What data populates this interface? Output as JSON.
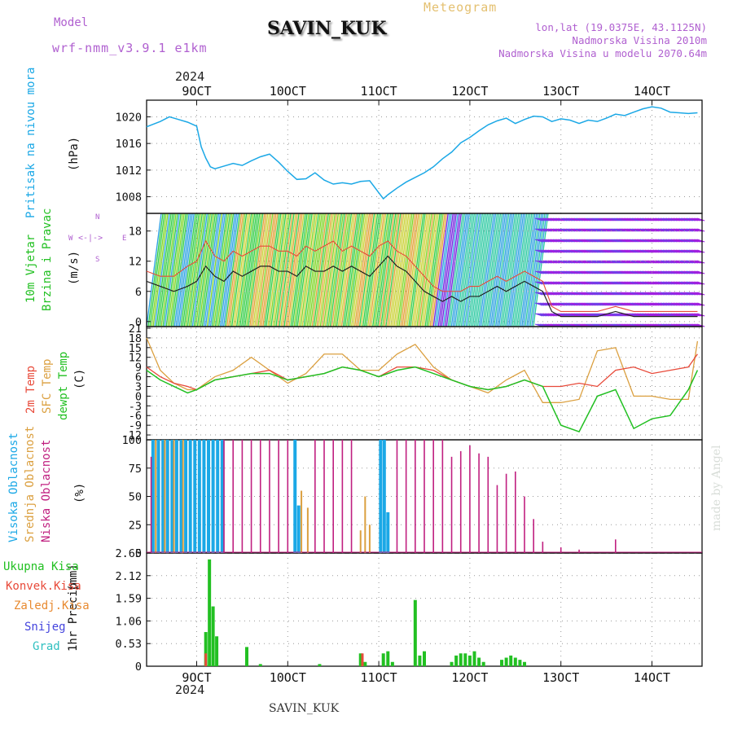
{
  "header": {
    "model_label": "Model",
    "model_name": "wrf-nmm_v3.9.1 e1km",
    "station": "SAVIN_KUK",
    "meteogram": "Meteogram",
    "lonlat": "lon,lat (19.0375E, 43.1125N)",
    "altitude": "Nadmorska Visina 2010m",
    "altitude_model": "Nadmorska Visina u modelu 2070.64m",
    "footer_station": "SAVIN_KUK",
    "credit": "made by Angel"
  },
  "colors": {
    "pressure": "#1ba8e6",
    "wind_label": "#22c022",
    "temp": "#e84a3a",
    "sfc_temp": "#dba040",
    "dewpt": "#22c022",
    "high_cloud": "#1ba8e6",
    "mid_cloud": "#dba040",
    "low_cloud": "#c02080",
    "total_precip": "#22c022",
    "conv_precip": "#e84a3a",
    "frozen_precip": "#e88a30",
    "snow": "#4444dd",
    "hail": "#30c0c0",
    "purple_text": "#b060d0"
  },
  "chart_data": [
    {
      "type": "line",
      "panel": "pressure",
      "ylabel_title": "Pritisak na nivou mora",
      "ylabel_unit": "(hPa)",
      "x_axis": {
        "year": "2024",
        "ticks": [
          "9OCT",
          "10OCT",
          "11OCT",
          "12OCT",
          "13OCT",
          "14OCT"
        ],
        "range": [
          8.45,
          14.55
        ]
      },
      "ylim": [
        1005.5,
        1022.5
      ],
      "yticks": [
        1008,
        1012,
        1016,
        1020
      ],
      "grid": true,
      "series": [
        {
          "x": [
            8.45,
            8.6,
            8.7,
            8.8,
            8.9,
            9.0,
            9.05,
            9.1,
            9.15,
            9.2,
            9.3,
            9.4,
            9.5,
            9.6,
            9.7,
            9.8,
            9.9,
            10.0,
            10.1,
            10.2,
            10.3,
            10.4,
            10.5,
            10.6,
            10.7,
            10.8,
            10.9,
            11.0,
            11.05,
            11.1,
            11.2,
            11.3,
            11.4,
            11.5,
            11.6,
            11.7,
            11.8,
            11.9,
            12.0,
            12.1,
            12.2,
            12.3,
            12.4,
            12.5,
            12.6,
            12.7,
            12.8,
            12.9,
            13.0,
            13.1,
            13.2,
            13.3,
            13.4,
            13.5,
            13.6,
            13.7,
            13.8,
            13.9,
            14.0,
            14.1,
            14.2,
            14.3,
            14.4,
            14.5
          ],
          "values": [
            1018.5,
            1019.3,
            1020.0,
            1019.6,
            1019.2,
            1018.6,
            1015.5,
            1013.8,
            1012.5,
            1012.2,
            1012.6,
            1013.0,
            1012.7,
            1013.4,
            1014.0,
            1014.4,
            1013.2,
            1011.8,
            1010.6,
            1010.7,
            1011.6,
            1010.5,
            1009.9,
            1010.1,
            1009.9,
            1010.3,
            1010.4,
            1008.6,
            1007.7,
            1008.3,
            1009.3,
            1010.2,
            1010.9,
            1011.6,
            1012.5,
            1013.7,
            1014.7,
            1016.1,
            1016.9,
            1017.9,
            1018.8,
            1019.4,
            1019.8,
            1019.0,
            1019.6,
            1020.1,
            1020.0,
            1019.3,
            1019.7,
            1019.5,
            1019.0,
            1019.5,
            1019.3,
            1019.8,
            1020.4,
            1020.2,
            1020.7,
            1021.2,
            1021.5,
            1021.3,
            1020.7,
            1020.6,
            1020.5,
            1020.6
          ]
        }
      ]
    },
    {
      "type": "line",
      "panel": "wind",
      "ylabel_title": "10m Vjetar",
      "ylabel_title2": "Brzina i Pravac",
      "ylabel_unit": "(m/s)",
      "compass_labels": [
        "N",
        "W",
        "E",
        "S"
      ],
      "ylim": [
        -1,
        21.5
      ],
      "yticks": [
        0,
        6,
        12,
        18
      ],
      "grid": true,
      "series": [
        {
          "name": "wind speed",
          "x": [
            8.45,
            8.6,
            8.75,
            8.9,
            9.0,
            9.1,
            9.2,
            9.3,
            9.4,
            9.5,
            9.6,
            9.7,
            9.8,
            9.9,
            10.0,
            10.1,
            10.2,
            10.3,
            10.4,
            10.5,
            10.6,
            10.7,
            10.8,
            10.9,
            11.0,
            11.1,
            11.2,
            11.3,
            11.4,
            11.5,
            11.6,
            11.7,
            11.8,
            11.9,
            12.0,
            12.1,
            12.2,
            12.3,
            12.4,
            12.5,
            12.6,
            12.7,
            12.8,
            12.9,
            13.0,
            13.2,
            13.4,
            13.6,
            13.8,
            14.0,
            14.2,
            14.4,
            14.5
          ],
          "values": [
            8,
            7,
            6,
            7,
            8,
            11,
            9,
            8,
            10,
            9,
            10,
            11,
            11,
            10,
            10,
            9,
            11,
            10,
            10,
            11,
            10,
            11,
            10,
            9,
            11,
            13,
            11,
            10,
            8,
            6,
            5,
            4,
            5,
            4,
            5,
            5,
            6,
            7,
            6,
            7,
            8,
            7,
            6,
            2,
            1,
            1,
            1,
            2,
            1,
            1,
            1,
            1,
            1
          ]
        },
        {
          "name": "wind gust",
          "x": [
            8.45,
            8.6,
            8.75,
            8.9,
            9.0,
            9.1,
            9.2,
            9.3,
            9.4,
            9.5,
            9.6,
            9.7,
            9.8,
            9.9,
            10.0,
            10.1,
            10.2,
            10.3,
            10.4,
            10.5,
            10.6,
            10.7,
            10.8,
            10.9,
            11.0,
            11.1,
            11.2,
            11.3,
            11.4,
            11.5,
            11.6,
            11.7,
            11.8,
            11.9,
            12.0,
            12.1,
            12.2,
            12.3,
            12.4,
            12.5,
            12.6,
            12.7,
            12.8,
            12.9,
            13.0,
            13.2,
            13.4,
            13.6,
            13.8,
            14.0,
            14.2,
            14.4,
            14.5
          ],
          "values": [
            10,
            9,
            9,
            11,
            12,
            16,
            13,
            12,
            14,
            13,
            14,
            15,
            15,
            14,
            14,
            13,
            15,
            14,
            15,
            16,
            14,
            15,
            14,
            13,
            15,
            16,
            14,
            13,
            11,
            9,
            7,
            6,
            6,
            6,
            7,
            7,
            8,
            9,
            8,
            9,
            10,
            9,
            8,
            3,
            2,
            2,
            2,
            3,
            2,
            2,
            2,
            2,
            2
          ]
        }
      ]
    },
    {
      "type": "line",
      "panel": "temperature",
      "ylabel_title": "2m Temp",
      "ylabel_title2": "SFC Temp",
      "ylabel_title3": "dewpt Temp",
      "ylabel_unit": "(C)",
      "ylim": [
        -13.5,
        21.5
      ],
      "yticks": [
        -12,
        -9,
        -6,
        -3,
        0,
        3,
        6,
        9,
        12,
        15,
        18,
        21
      ],
      "grid": true,
      "series": [
        {
          "name": "2m Temp",
          "x": [
            8.45,
            8.6,
            8.75,
            8.9,
            9.0,
            9.2,
            9.4,
            9.6,
            9.8,
            10.0,
            10.2,
            10.4,
            10.6,
            10.8,
            11.0,
            11.2,
            11.4,
            11.6,
            11.8,
            12.0,
            12.2,
            12.4,
            12.6,
            12.8,
            13.0,
            13.2,
            13.4,
            13.6,
            13.8,
            14.0,
            14.2,
            14.4,
            14.5
          ],
          "values": [
            9,
            6,
            4,
            3,
            2,
            5,
            6,
            7,
            8,
            5,
            6,
            7,
            9,
            8,
            6,
            9,
            9,
            8,
            5,
            3,
            2,
            3,
            5,
            3,
            3,
            4,
            3,
            8,
            9,
            7,
            8,
            9,
            13
          ]
        },
        {
          "name": "SFC Temp",
          "x": [
            8.45,
            8.6,
            8.75,
            8.9,
            9.0,
            9.2,
            9.4,
            9.6,
            9.8,
            10.0,
            10.2,
            10.4,
            10.6,
            10.8,
            11.0,
            11.2,
            11.4,
            11.6,
            11.8,
            12.0,
            12.2,
            12.4,
            12.6,
            12.8,
            13.0,
            13.2,
            13.4,
            13.6,
            13.8,
            14.0,
            14.2,
            14.4,
            14.5
          ],
          "values": [
            18,
            8,
            4,
            2,
            2,
            6,
            8,
            12,
            8,
            4,
            7,
            13,
            13,
            8,
            8,
            13,
            16,
            9,
            5,
            3,
            1,
            5,
            8,
            -2,
            -2,
            -1,
            14,
            15,
            0,
            0,
            -1,
            -1,
            17
          ]
        },
        {
          "name": "dewpt Temp",
          "x": [
            8.45,
            8.6,
            8.75,
            8.9,
            9.0,
            9.2,
            9.4,
            9.6,
            9.8,
            10.0,
            10.2,
            10.4,
            10.6,
            10.8,
            11.0,
            11.2,
            11.4,
            11.6,
            11.8,
            12.0,
            12.2,
            12.4,
            12.6,
            12.8,
            13.0,
            13.2,
            13.4,
            13.6,
            13.8,
            14.0,
            14.2,
            14.4,
            14.5
          ],
          "values": [
            8,
            5,
            3,
            1,
            2,
            5,
            6,
            7,
            7,
            5,
            6,
            7,
            9,
            8,
            6,
            8,
            9,
            7,
            5,
            3,
            2,
            3,
            5,
            3,
            -9,
            -11,
            0,
            2,
            -10,
            -7,
            -6,
            2,
            8
          ]
        }
      ]
    },
    {
      "type": "bar",
      "panel": "cloud",
      "ylabel_title": "Visoka Oblacnost",
      "ylabel_title2": "Srednja Oblacnost",
      "ylabel_title3": "Niska Oblacnost",
      "ylabel_unit": "(%)",
      "ylim": [
        0,
        100
      ],
      "yticks": [
        0,
        25,
        50,
        75,
        100
      ],
      "grid": true,
      "series": [
        {
          "name": "Visoka Oblacnost",
          "x": [
            8.52,
            8.58,
            8.63,
            8.68,
            8.73,
            8.78,
            8.83,
            8.88,
            8.93,
            8.98,
            9.03,
            9.08,
            9.13,
            9.18,
            9.23,
            9.28,
            10.08,
            10.12,
            11.02,
            11.06,
            11.1
          ],
          "values": [
            100,
            100,
            100,
            100,
            100,
            100,
            100,
            100,
            100,
            100,
            100,
            100,
            100,
            100,
            100,
            100,
            100,
            42,
            100,
            100,
            36
          ]
        },
        {
          "name": "Srednja Oblacnost",
          "x": [
            8.55,
            8.65,
            8.75,
            8.85,
            10.15,
            10.22,
            10.8,
            10.85,
            10.9
          ],
          "values": [
            100,
            100,
            100,
            100,
            55,
            40,
            20,
            50,
            25
          ]
        },
        {
          "name": "Niska Oblacnost",
          "x": [
            8.5,
            9.3,
            9.4,
            9.5,
            9.6,
            9.7,
            9.8,
            9.9,
            10.0,
            10.3,
            10.4,
            10.5,
            10.6,
            10.7,
            11.2,
            11.3,
            11.4,
            11.5,
            11.6,
            11.7,
            11.8,
            11.9,
            12.0,
            12.1,
            12.2,
            12.3,
            12.4,
            12.5,
            12.6,
            12.7,
            12.8,
            13.0,
            13.2,
            13.6
          ],
          "values": [
            85,
            100,
            100,
            100,
            100,
            100,
            100,
            100,
            100,
            100,
            100,
            100,
            100,
            100,
            100,
            100,
            100,
            100,
            100,
            100,
            85,
            90,
            95,
            88,
            85,
            60,
            70,
            72,
            50,
            30,
            10,
            5,
            3,
            12
          ]
        }
      ]
    },
    {
      "type": "bar",
      "panel": "precip",
      "ylabel_title": "1hr Precip",
      "ylabel_unit": "(mm)",
      "legend": [
        "Ukupna Kisa",
        "Konvek.Kisa",
        "Zaledj.Kisa",
        "Snijeg",
        "Grad"
      ],
      "ylim": [
        0,
        2.65
      ],
      "yticks": [
        0,
        0.53,
        1.06,
        1.59,
        2.12,
        2.65
      ],
      "grid": true,
      "series": [
        {
          "name": "Ukupna Kisa",
          "x": [
            9.1,
            9.14,
            9.18,
            9.22,
            9.55,
            9.7,
            10.35,
            10.8,
            10.85,
            11.05,
            11.1,
            11.15,
            11.4,
            11.45,
            11.5,
            11.8,
            11.85,
            11.9,
            11.95,
            12.0,
            12.05,
            12.1,
            12.15,
            12.35,
            12.4,
            12.45,
            12.5,
            12.55,
            12.6
          ],
          "values": [
            0.8,
            2.5,
            1.4,
            0.7,
            0.45,
            0.05,
            0.05,
            0.3,
            0.1,
            0.3,
            0.35,
            0.1,
            1.55,
            0.25,
            0.35,
            0.1,
            0.25,
            0.3,
            0.3,
            0.25,
            0.35,
            0.2,
            0.1,
            0.15,
            0.2,
            0.25,
            0.2,
            0.15,
            0.1
          ]
        },
        {
          "name": "Konvek.Kisa",
          "x": [
            9.1,
            10.82
          ],
          "values": [
            0.3,
            0.3
          ]
        }
      ]
    }
  ]
}
